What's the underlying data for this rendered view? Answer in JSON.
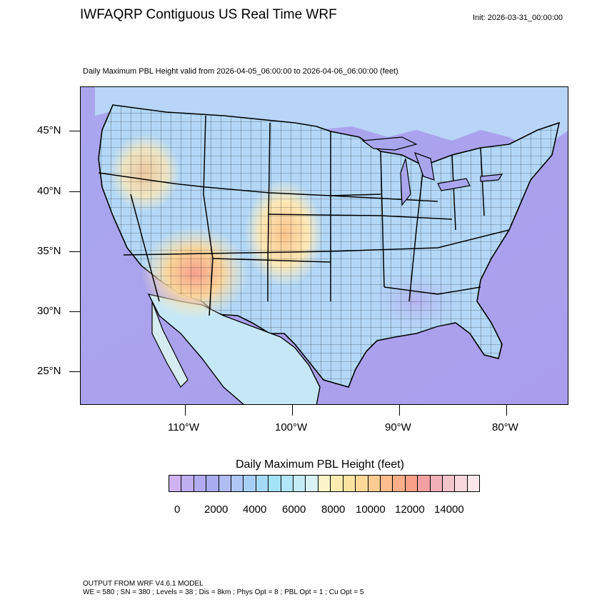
{
  "title": "IWFAQRP Contiguous US Real Time WRF",
  "init": "Init: 2026-03-31_00:00:00",
  "subtitle": "Daily Maximum PBL Height valid from 2026-04-05_06:00:00 to 2026-04-06_06:00:00   (feet)",
  "lat_labels": [
    "45°N",
    "40°N",
    "35°N",
    "30°N",
    "25°N"
  ],
  "lon_labels": [
    "110°W",
    "100°W",
    "90°W",
    "80°W"
  ],
  "colorbar": {
    "title": "Daily Maximum PBL Height  (feet)",
    "labels": [
      "0",
      "2000",
      "4000",
      "6000",
      "8000",
      "10000",
      "12000",
      "14000"
    ],
    "colors": [
      "#cfb3f2",
      "#c0aff0",
      "#b2abef",
      "#a9adf0",
      "#b0bdf2",
      "#aec7f4",
      "#a8d0f6",
      "#a6dbf8",
      "#a4e4fa",
      "#b2e6f8",
      "#c4ecf7",
      "#d8f2f6",
      "#fbf4c8",
      "#fdecb0",
      "#fde3a0",
      "#fed898",
      "#fecb92",
      "#fdbd8c",
      "#fcae89",
      "#faa088",
      "#f4a0a2",
      "#eeb0b6",
      "#f3c5cb",
      "#f8d8dc",
      "#fce8ea"
    ]
  },
  "footer": {
    "line1": "OUTPUT FROM WRF V4.6.1 MODEL",
    "line2": "WE = 580 ; SN = 380 ; Levels = 38 ; Dis = 8km ; Phys Opt = 8 ; PBL Opt = 1 ; Cu Opt = 5"
  }
}
